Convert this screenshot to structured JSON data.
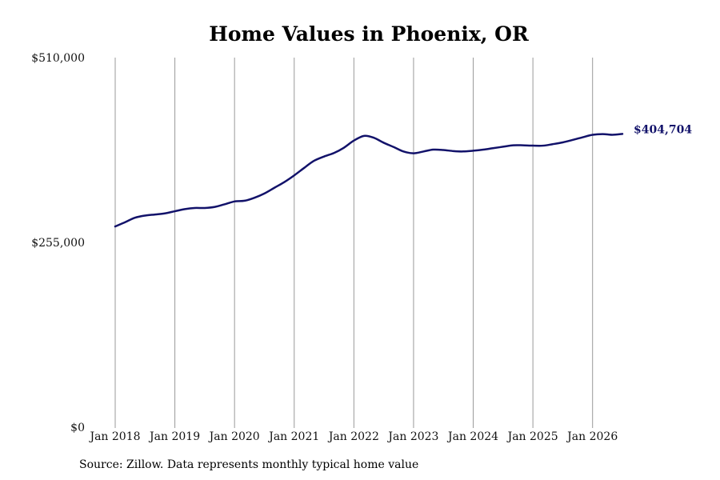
{
  "chart_data": {
    "type": "line",
    "title": "Home Values in Phoenix, OR",
    "xlabel": "",
    "ylabel": "",
    "ylim": [
      0,
      510000
    ],
    "y_ticks": [
      {
        "value": 510000,
        "label": "$510,000"
      },
      {
        "value": 255000,
        "label": "$255,000"
      },
      {
        "value": 0,
        "label": "$0"
      }
    ],
    "x_ticks": [
      {
        "value": 2018,
        "label": "Jan 2018"
      },
      {
        "value": 2019,
        "label": "Jan 2019"
      },
      {
        "value": 2020,
        "label": "Jan 2020"
      },
      {
        "value": 2021,
        "label": "Jan 2021"
      },
      {
        "value": 2022,
        "label": "Jan 2022"
      },
      {
        "value": 2023,
        "label": "Jan 2023"
      },
      {
        "value": 2024,
        "label": "Jan 2024"
      },
      {
        "value": 2025,
        "label": "Jan 2025"
      },
      {
        "value": 2026,
        "label": "Jan 2026"
      }
    ],
    "xlim": [
      2018,
      2026.5
    ],
    "grid": "vertical",
    "series": [
      {
        "color": "#12126a",
        "x": [
          2018.0,
          2018.17,
          2018.33,
          2018.5,
          2018.67,
          2018.83,
          2019.0,
          2019.17,
          2019.33,
          2019.5,
          2019.67,
          2019.83,
          2020.0,
          2020.17,
          2020.33,
          2020.5,
          2020.67,
          2020.83,
          2021.0,
          2021.17,
          2021.33,
          2021.5,
          2021.67,
          2021.83,
          2022.0,
          2022.17,
          2022.33,
          2022.5,
          2022.67,
          2022.83,
          2023.0,
          2023.17,
          2023.33,
          2023.5,
          2023.67,
          2023.83,
          2024.0,
          2024.17,
          2024.33,
          2024.5,
          2024.67,
          2024.83,
          2025.0,
          2025.17,
          2025.33,
          2025.5,
          2025.67,
          2025.83,
          2026.0,
          2026.17,
          2026.33,
          2026.5
        ],
        "values": [
          277000,
          283000,
          289000,
          292000,
          293500,
          295000,
          298000,
          301000,
          302500,
          302500,
          304000,
          307500,
          311500,
          312500,
          316500,
          322500,
          330500,
          338000,
          347500,
          358000,
          367500,
          373500,
          378500,
          385500,
          395500,
          402000,
          399500,
          392500,
          386500,
          380500,
          378000,
          380500,
          383000,
          382500,
          381000,
          380500,
          381500,
          383000,
          385000,
          387000,
          389000,
          389000,
          388500,
          388500,
          390500,
          393000,
          396500,
          400000,
          403500,
          404500,
          403500,
          404704
        ]
      }
    ],
    "end_label": "$404,704"
  },
  "source": "Source: Zillow. Data represents monthly typical home value"
}
